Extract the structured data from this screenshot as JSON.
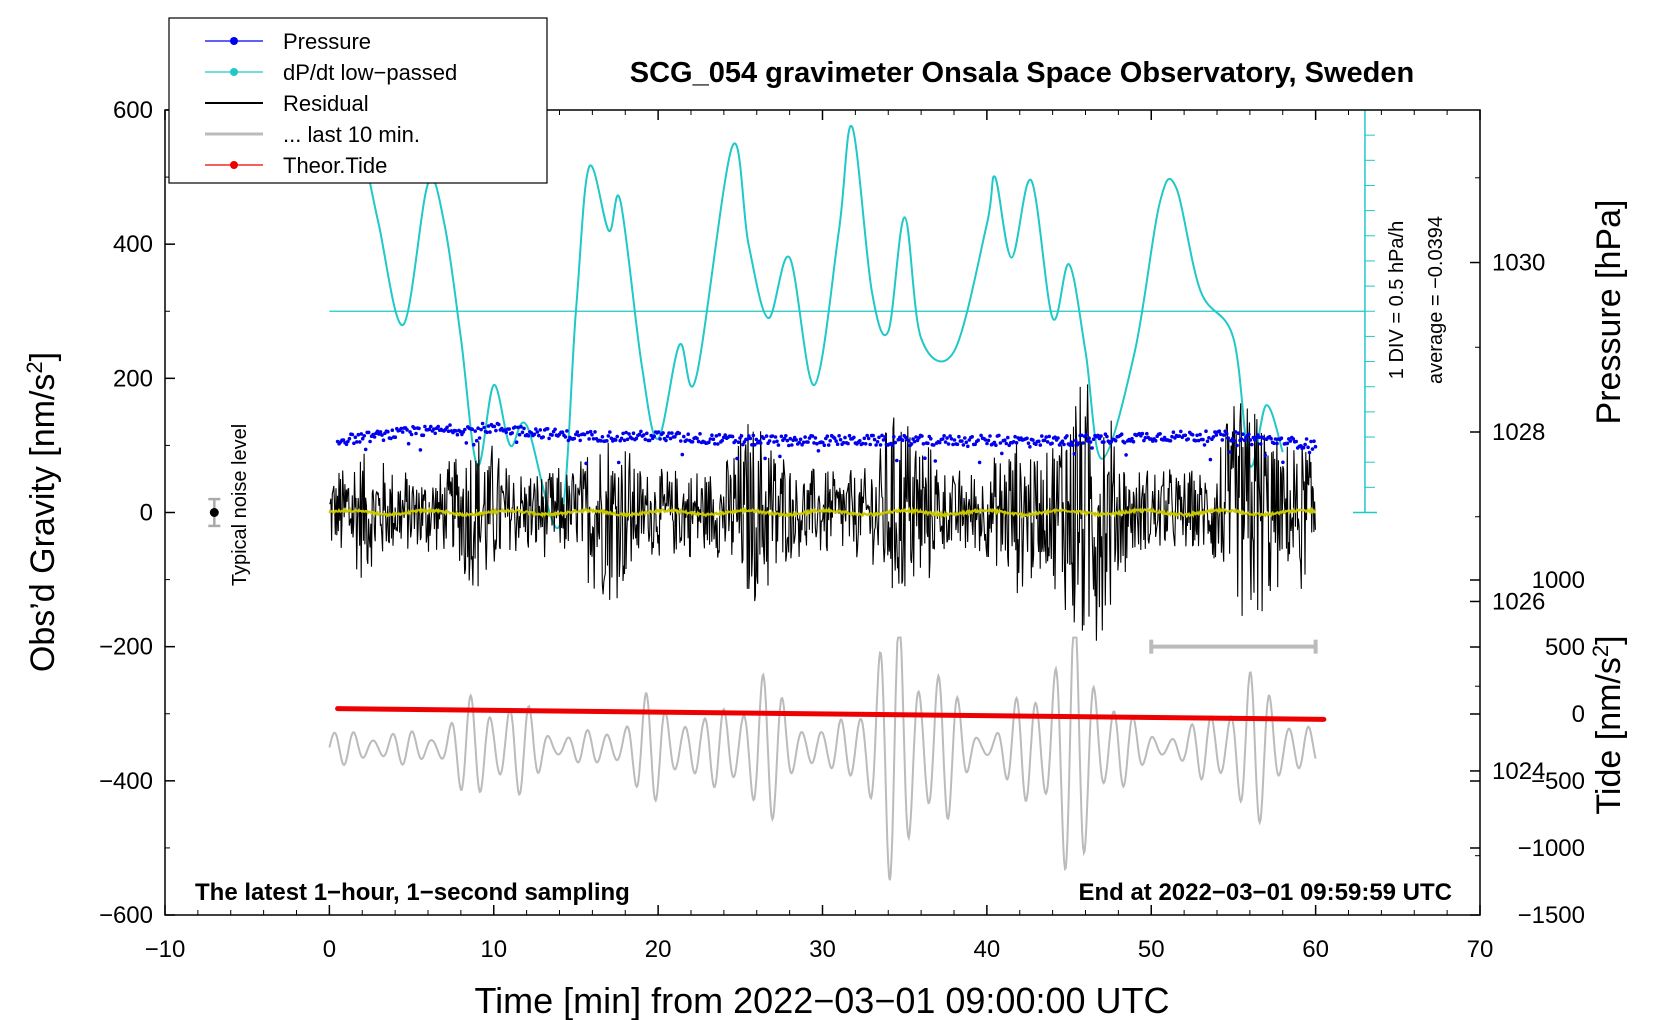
{
  "chart_data": {
    "type": "line",
    "title": "SCG_054 gravimeter Onsala Space Observatory, Sweden",
    "xlabel": "Time [min] from 2022−03−01 09:00:00 UTC",
    "xlim": [
      -10,
      70
    ],
    "xticks": [
      -10,
      0,
      10,
      20,
      30,
      40,
      50,
      60,
      70
    ],
    "xtick_labels": [
      "−10",
      "0",
      "10",
      "20",
      "30",
      "40",
      "50",
      "60",
      "70"
    ],
    "left_axis": {
      "label_main": "Obs’d Gravity [nm/s",
      "label_sup": "2",
      "label_end": "]",
      "ylim": [
        -600,
        600
      ],
      "ticks": [
        600,
        400,
        200,
        0,
        -200,
        -400,
        -600
      ],
      "tick_labels": [
        "600",
        "400",
        "200",
        "0",
        "−200",
        "−400",
        "−600"
      ]
    },
    "right_pressure_axis": {
      "label": "Pressure [hPa]",
      "range": [
        1022.3,
        1031.8
      ],
      "ticks": [
        1030,
        1028,
        1026,
        1024
      ],
      "tick_labels": [
        "1030",
        "1028",
        "1026",
        "1024"
      ]
    },
    "right_tide_axis": {
      "label_main": "Tide [nm/s",
      "label_sup": "2",
      "label_end": "]",
      "range": [
        -1500,
        1000
      ],
      "ticks": [
        1000,
        500,
        0,
        -500,
        -1000,
        -1500
      ],
      "tick_labels": [
        "1000",
        "500",
        "0",
        "−500",
        "−1000",
        "−1500"
      ]
    },
    "legend": {
      "position": "top-left",
      "entries": [
        {
          "label": "Pressure",
          "color": "#0000ee",
          "marker": true
        },
        {
          "label": "dP/dt low−passed",
          "color": "#20c8c8",
          "marker": true
        },
        {
          "label": "Residual",
          "color": "#000000",
          "marker": false
        },
        {
          "label": "... last 10 min.",
          "color": "#bbbbbb",
          "marker": false
        },
        {
          "label": "Theor.Tide",
          "color": "#ee0000",
          "marker": true
        }
      ]
    },
    "dpdt_scale": {
      "div_label": "1 DIV = 0.5 hPa/h",
      "average_label": "average = −0.0394",
      "zero_gravity_level": 300
    },
    "noise_label": "Typical noise level",
    "noise_level": {
      "x": -7,
      "value": 0,
      "error": 20
    },
    "bottom_left_note": "The latest 1−hour, 1−second sampling",
    "bottom_right_note": "End at 2022−03−01 09:59:59 UTC",
    "last10_range": {
      "x_start": 50,
      "x_end": 60,
      "value": -200
    },
    "series": [
      {
        "name": "Pressure",
        "axis": "pressure",
        "color": "#0000ee",
        "x": [
          0.5,
          5,
          10,
          15,
          20,
          25,
          30,
          35,
          40,
          45,
          50,
          55,
          60
        ],
        "values": [
          1027.9,
          1028.0,
          1028.05,
          1027.95,
          1027.95,
          1027.9,
          1027.9,
          1027.9,
          1027.9,
          1027.9,
          1027.95,
          1027.95,
          1027.85
        ]
      },
      {
        "name": "dP/dt low−passed",
        "axis": "gravity",
        "color": "#20c8c8",
        "x": [
          2,
          3,
          4.5,
          6,
          7,
          8,
          9,
          10,
          11,
          12,
          14,
          15,
          15.8,
          17,
          17.7,
          19,
          20,
          21.3,
          22.3,
          24.5,
          25.5,
          26.7,
          28,
          29.5,
          31,
          31.8,
          33,
          34,
          35,
          36,
          38,
          40,
          40.5,
          41.5,
          42.7,
          44,
          45,
          46,
          47,
          49,
          50.5,
          51.5,
          53,
          55,
          56,
          57,
          58
        ],
        "values": [
          550,
          430,
          280,
          490,
          430,
          260,
          70,
          190,
          100,
          130,
          -20,
          300,
          515,
          420,
          465,
          220,
          110,
          250,
          200,
          545,
          400,
          290,
          380,
          190,
          420,
          575,
          330,
          270,
          440,
          260,
          240,
          430,
          500,
          380,
          495,
          290,
          370,
          240,
          80,
          240,
          460,
          485,
          330,
          260,
          70,
          160,
          90
        ]
      },
      {
        "name": "Residual",
        "axis": "gravity",
        "color": "#000000",
        "x": [
          0,
          60
        ],
        "amplitude_range": [
          -200,
          230
        ]
      },
      {
        "name": "... last 10 min.",
        "axis": "tide",
        "color": "#bbbbbb",
        "x": [
          0,
          60
        ],
        "amplitude_range": [
          -1330,
          570
        ]
      },
      {
        "name": "Theor.Tide",
        "axis": "tide",
        "color": "#ee0000",
        "x": [
          0.5,
          60.5
        ],
        "values": [
          40,
          -40
        ]
      }
    ]
  }
}
